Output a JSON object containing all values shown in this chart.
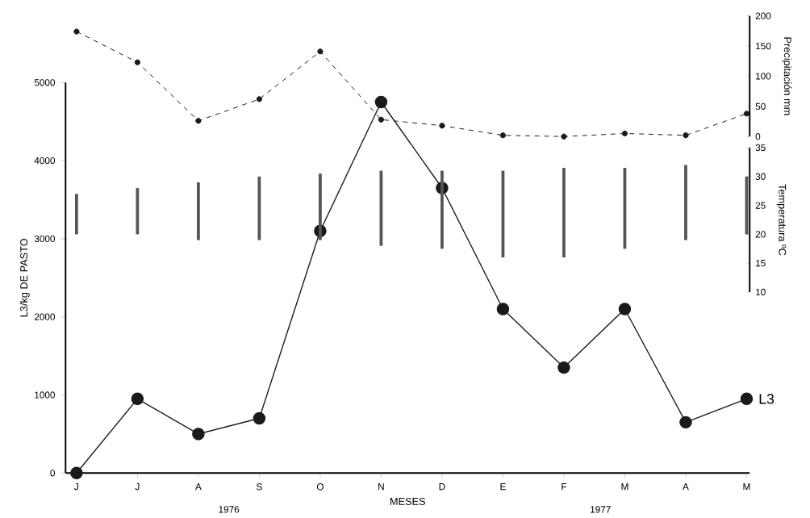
{
  "chart_data": {
    "type": "line",
    "categories": [
      "J",
      "J",
      "A",
      "S",
      "O",
      "N",
      "D",
      "E",
      "F",
      "M",
      "A",
      "M"
    ],
    "ylabel": "L3/kg DE PASTO",
    "y3label": "Precipitación mm",
    "y2label": "Temperatura ºC",
    "xlabel": "MESES",
    "annotations": [
      "1976",
      "1977"
    ],
    "ylim": [
      0,
      5000
    ],
    "yticks": [
      0,
      1000,
      2000,
      3000,
      4000,
      5000
    ],
    "y3lim": [
      0,
      200
    ],
    "y3ticks": [
      0,
      50,
      100,
      150,
      200
    ],
    "y2lim": [
      10,
      35
    ],
    "y2ticks": [
      10,
      15,
      20,
      25,
      30,
      35
    ],
    "grid": false,
    "legend": false,
    "series": [
      {
        "name": "L3",
        "color": "#1a1a1a",
        "marker": "circle",
        "line_style": "solid",
        "values": [
          0,
          950,
          500,
          700,
          3100,
          4750,
          3650,
          2100,
          1350,
          2100,
          650,
          950
        ]
      },
      {
        "axis": "y3",
        "color": "#1a1a1a",
        "marker": "circle",
        "line_style": "dashed",
        "values": [
          174,
          123,
          26,
          62,
          141,
          28,
          18,
          2,
          0,
          5,
          2,
          38
        ]
      },
      {
        "type": "bar",
        "axis": "y2",
        "color": "#555555",
        "base": [
          20,
          20,
          19,
          19,
          19,
          18,
          17.5,
          16,
          16,
          17.5,
          19,
          20
        ],
        "values": [
          7,
          8,
          10,
          11,
          11.5,
          13,
          13.5,
          15,
          15.5,
          14,
          13,
          10
        ]
      }
    ]
  }
}
